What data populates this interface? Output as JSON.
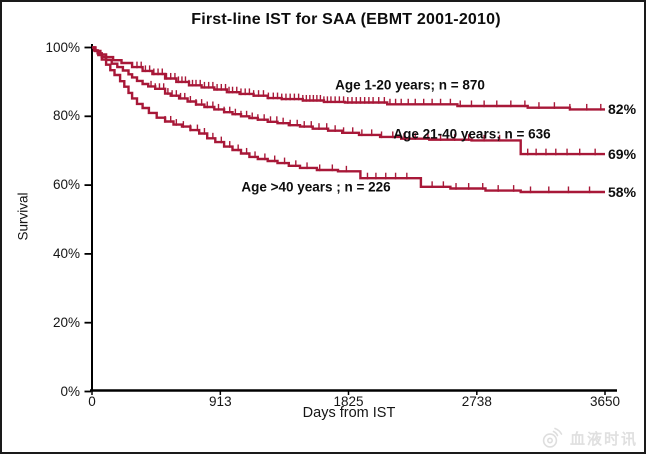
{
  "frame": {
    "background_color": "#ffffff",
    "border_color": "#1a1a1a"
  },
  "colors": {
    "curve": "#A81838",
    "axis": "#000000",
    "text": "#111111",
    "watermark": "#dedede"
  },
  "watermark": {
    "icon": "weibo-icon",
    "text": "血液时讯"
  },
  "chart_data": {
    "type": "line",
    "subtype": "kaplan-meier-step",
    "title": "First-line IST for SAA (EBMT 2001-2010)",
    "xlabel": "Days from IST",
    "ylabel": "Survival",
    "xlim": [
      0,
      3650
    ],
    "ylim": [
      0,
      100
    ],
    "x_ticks": [
      0,
      913,
      1825,
      2738,
      3650
    ],
    "y_ticks_pct": [
      0,
      20,
      40,
      60,
      80,
      100
    ],
    "y_tick_labels": [
      "0%",
      "20%",
      "40%",
      "60%",
      "80%",
      "100%"
    ],
    "grid": false,
    "legend": "inline-annotations",
    "series": [
      {
        "name": "Age 1-20 years; n = 870",
        "n": 870,
        "end_label": "82%",
        "final_pct": 82,
        "points": [
          [
            0,
            100
          ],
          [
            25,
            99
          ],
          [
            60,
            98
          ],
          [
            100,
            97.2
          ],
          [
            150,
            96.3
          ],
          [
            210,
            95.5
          ],
          [
            285,
            94.3
          ],
          [
            360,
            93.2
          ],
          [
            430,
            92.3
          ],
          [
            520,
            91
          ],
          [
            600,
            90
          ],
          [
            690,
            89
          ],
          [
            780,
            88.4
          ],
          [
            870,
            87.8
          ],
          [
            960,
            87
          ],
          [
            1050,
            86.5
          ],
          [
            1150,
            86
          ],
          [
            1250,
            85.3
          ],
          [
            1350,
            85
          ],
          [
            1500,
            84.6
          ],
          [
            1650,
            84.2
          ],
          [
            1800,
            84
          ],
          [
            2100,
            83.5
          ],
          [
            2600,
            83
          ],
          [
            3100,
            82.5
          ],
          [
            3400,
            82
          ],
          [
            3650,
            82
          ]
        ],
        "censor_days": [
          320,
          350,
          380,
          410,
          440,
          470,
          500,
          530,
          560,
          590,
          615,
          640,
          665,
          690,
          715,
          740,
          770,
          800,
          830,
          860,
          890,
          920,
          950,
          975,
          1000,
          1030,
          1060,
          1090,
          1120,
          1150,
          1185,
          1220,
          1255,
          1290,
          1320,
          1350,
          1380,
          1410,
          1440,
          1470,
          1500,
          1525,
          1550,
          1575,
          1600,
          1625,
          1650,
          1675,
          1700,
          1730,
          1760,
          1790,
          1820,
          1850,
          1880,
          1910,
          1940,
          1970,
          2000,
          2040,
          2080,
          2120,
          2160,
          2200,
          2250,
          2300,
          2360,
          2420,
          2480,
          2550,
          2620,
          2700,
          2790,
          2880,
          2980,
          3080,
          3180,
          3290,
          3400,
          3520,
          3620
        ]
      },
      {
        "name": "Age 21-40 years; n = 636",
        "n": 636,
        "end_label": "69%",
        "final_pct": 69,
        "points": [
          [
            0,
            100
          ],
          [
            15,
            99.2
          ],
          [
            40,
            98.3
          ],
          [
            70,
            97.3
          ],
          [
            100,
            96.4
          ],
          [
            140,
            95.3
          ],
          [
            180,
            94.3
          ],
          [
            220,
            93.3
          ],
          [
            260,
            92.2
          ],
          [
            285,
            91.3
          ],
          [
            320,
            90.3
          ],
          [
            360,
            89.4
          ],
          [
            400,
            88.7
          ],
          [
            450,
            88
          ],
          [
            520,
            86.6
          ],
          [
            560,
            86
          ],
          [
            620,
            85.2
          ],
          [
            680,
            84.3
          ],
          [
            740,
            83.4
          ],
          [
            800,
            82.7
          ],
          [
            870,
            82
          ],
          [
            940,
            81.2
          ],
          [
            1000,
            80.6
          ],
          [
            1060,
            80
          ],
          [
            1120,
            79.5
          ],
          [
            1180,
            79
          ],
          [
            1250,
            78.4
          ],
          [
            1320,
            78
          ],
          [
            1400,
            77.4
          ],
          [
            1480,
            77
          ],
          [
            1570,
            76.4
          ],
          [
            1680,
            75.8
          ],
          [
            1780,
            75.2
          ],
          [
            1900,
            74.6
          ],
          [
            2050,
            74
          ],
          [
            2200,
            73.5
          ],
          [
            2400,
            73.2
          ],
          [
            2700,
            73
          ],
          [
            3050,
            69
          ],
          [
            3650,
            69
          ]
        ],
        "censor_days": [
          420,
          450,
          480,
          510,
          540,
          570,
          600,
          630,
          660,
          700,
          740,
          780,
          820,
          860,
          900,
          940,
          980,
          1020,
          1060,
          1100,
          1140,
          1180,
          1225,
          1270,
          1315,
          1360,
          1410,
          1460,
          1510,
          1560,
          1615,
          1670,
          1730,
          1790,
          1855,
          1920,
          1990,
          2060,
          2140,
          2220,
          2300,
          2390,
          2480,
          2580,
          2680,
          2790,
          2900,
          3100,
          3160,
          3230,
          3300,
          3380,
          3470,
          3580
        ]
      },
      {
        "name": "Age >40 years ; n = 226",
        "n": 226,
        "end_label": "58%",
        "final_pct": 58,
        "points": [
          [
            0,
            100
          ],
          [
            20,
            99
          ],
          [
            45,
            97.8
          ],
          [
            70,
            96.5
          ],
          [
            100,
            95
          ],
          [
            130,
            93.4
          ],
          [
            160,
            92
          ],
          [
            200,
            90.2
          ],
          [
            230,
            88.6
          ],
          [
            260,
            86.8
          ],
          [
            285,
            85.2
          ],
          [
            320,
            83.6
          ],
          [
            360,
            82.4
          ],
          [
            405,
            81
          ],
          [
            460,
            79.6
          ],
          [
            520,
            78.5
          ],
          [
            580,
            77.6
          ],
          [
            640,
            77
          ],
          [
            700,
            76
          ],
          [
            763,
            75
          ],
          [
            820,
            73.6
          ],
          [
            877,
            72.5
          ],
          [
            940,
            71.2
          ],
          [
            1000,
            70.2
          ],
          [
            1060,
            69.2
          ],
          [
            1120,
            68.2
          ],
          [
            1180,
            67.6
          ],
          [
            1250,
            67
          ],
          [
            1320,
            66.4
          ],
          [
            1400,
            65.6
          ],
          [
            1480,
            65
          ],
          [
            1600,
            64.4
          ],
          [
            1750,
            64
          ],
          [
            1910,
            62
          ],
          [
            2340,
            59.5
          ],
          [
            2550,
            59
          ],
          [
            2800,
            58.4
          ],
          [
            3050,
            58
          ],
          [
            3650,
            58
          ]
        ],
        "censor_days": [
          520,
          560,
          600,
          650,
          700,
          750,
          800,
          860,
          920,
          980,
          1040,
          1100,
          1160,
          1230,
          1300,
          1370,
          1450,
          1530,
          1620,
          1710,
          1810,
          1960,
          2020,
          2090,
          2160,
          2240,
          2420,
          2500,
          2590,
          2680,
          2780,
          2890,
          3000,
          3120,
          3250,
          3390,
          3540
        ]
      }
    ]
  }
}
